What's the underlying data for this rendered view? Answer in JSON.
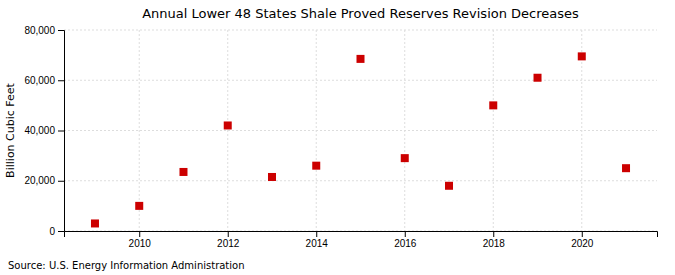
{
  "chart_data": {
    "type": "scatter",
    "title": "Annual Lower 48 States Shale Proved Reserves Revision Decreases",
    "ylabel": "Billion Cubic Feet",
    "annotations": [
      "Source: U.S. Energy Information Administration"
    ],
    "x": [
      2009,
      2010,
      2011,
      2012,
      2013,
      2014,
      2015,
      2016,
      2017,
      2018,
      2019,
      2020,
      2021
    ],
    "values": [
      3000,
      10000,
      23500,
      42000,
      21500,
      26000,
      68500,
      29000,
      18000,
      50000,
      61000,
      69500,
      25000
    ],
    "color": "#CC0000",
    "marker": "square",
    "xlim": [
      2008.3,
      2021.7
    ],
    "ylim": [
      0,
      80000
    ],
    "xticks": [
      2010,
      2012,
      2014,
      2016,
      2018,
      2020
    ],
    "yticks": [
      0,
      {
        "value": 20000,
        "label": "20,000"
      },
      {
        "value": 40000,
        "label": "40,000"
      },
      {
        "value": 60000,
        "label": "60,000"
      },
      {
        "value": 80000,
        "label": "80,000"
      }
    ],
    "grid": true
  }
}
